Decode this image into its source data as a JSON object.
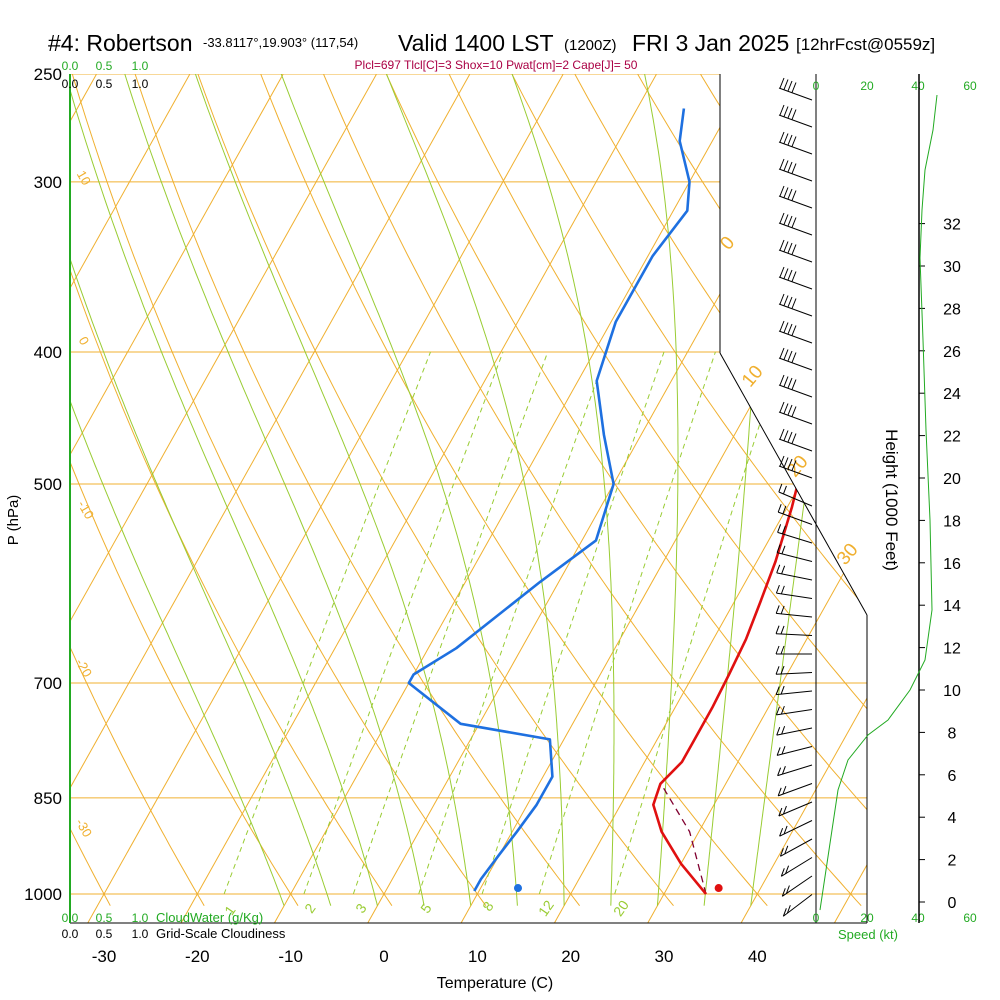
{
  "header": {
    "station": "#4: Robertson",
    "coords": "-33.8117°,19.903° (117,54)",
    "valid": "Valid 1400 LST",
    "zulu": "(1200Z)",
    "date": "FRI 3 Jan 2025",
    "forecast": "[12hrFcst@0559z]"
  },
  "params_line": "Plcl=697 Tlcl[C]=3 Shox=10 Pwat[cm]=2 Cape[J]= 50",
  "labels": {
    "y_axis": "P (hPa)",
    "x_axis": "Temperature (C)",
    "height_axis": "Height (1000 Feet)",
    "cloudwater": "CloudWater (g/Kg)",
    "cloudiness": "Grid-Scale Cloudiness",
    "speed": "Speed (kt)"
  },
  "colors": {
    "isobar": "#f0b030",
    "dry_adiabat": "#f0b030",
    "moist_adiabat": "#99cc33",
    "mixing_ratio": "#99cc33",
    "temperature": "#e01010",
    "dewpoint": "#1e70e0",
    "parcel": "#800030",
    "green": "#22aa22",
    "params": "#aa0044"
  },
  "chart_data": {
    "type": "line",
    "title": "#4: Robertson  Valid 1400 LST (1200Z) FRI 3 Jan 2025",
    "xlabel": "Temperature (C)",
    "ylabel": "P (hPa)",
    "x_ticks": [
      "-30",
      "-20",
      "-10",
      "0",
      "10",
      "20",
      "30",
      "40"
    ],
    "y_ticks": [
      "250",
      "300",
      "400",
      "500",
      "700",
      "850",
      "1000"
    ],
    "xlim": [
      -33,
      46
    ],
    "ylim": [
      1010,
      250
    ],
    "y_scale": "log",
    "series": [
      {
        "key": "temperature",
        "x": [
          34.5,
          30,
          26,
          23.5,
          23,
          24,
          24,
          24,
          23.8,
          23.5,
          22.8,
          22,
          20.5,
          18.5,
          16,
          13,
          8.5,
          3
        ],
        "y": [
          1000,
          950,
          900,
          860,
          830,
          800,
          770,
          730,
          690,
          650,
          610,
          570,
          520,
          470,
          420,
          370,
          320,
          270
        ]
      },
      {
        "key": "dewpoint",
        "x": [
          9.5,
          9.5,
          10,
          10.5,
          11,
          11,
          8.5,
          -2,
          -10,
          -10,
          -7,
          -2,
          1.5,
          0,
          -4,
          -8,
          -9.5,
          -9.5,
          -8.5,
          -10,
          -13.5,
          -15
        ],
        "y": [
          995,
          975,
          935,
          900,
          860,
          820,
          770,
          750,
          700,
          690,
          660,
          590,
          550,
          500,
          460,
          420,
          380,
          340,
          315,
          300,
          280,
          265
        ]
      },
      {
        "key": "parcel",
        "x": [
          34.5,
          29,
          23.5
        ],
        "y": [
          1000,
          900,
          835
        ]
      }
    ],
    "surface_temperature": 35.5,
    "surface_dewpoint": 14,
    "isotherm_labels": [
      "0",
      "10",
      "20",
      "30"
    ],
    "dry_adiabat_labels": [
      "10",
      "0",
      "-10",
      "-20",
      "-30"
    ],
    "mixing_ratio_labels": [
      "1",
      "2",
      "3",
      "5",
      "8",
      "12",
      "20"
    ],
    "height_ticks": [
      "0",
      "2",
      "4",
      "6",
      "8",
      "10",
      "12",
      "14",
      "16",
      "18",
      "20",
      "22",
      "24",
      "26",
      "28",
      "30",
      "32"
    ],
    "wind_speed_ticks": [
      "0",
      "20",
      "40",
      "60"
    ],
    "cloudwater_ticks": [
      "0.0",
      "0.5",
      "1.0"
    ],
    "cloudiness_ticks": [
      "0.0",
      "0.5",
      "1.0"
    ]
  }
}
